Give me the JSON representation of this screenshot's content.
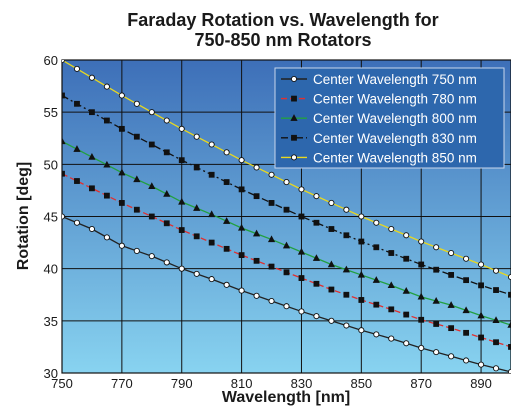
{
  "chart_data": {
    "type": "line",
    "title": "Faraday Rotation vs. Wavelength for",
    "subtitle": "750-850 nm Rotators",
    "xlabel": "Wavelength [nm]",
    "ylabel": "Rotation [deg]",
    "xlim": [
      750,
      900
    ],
    "ylim": [
      30,
      60
    ],
    "x_ticks": [
      750,
      770,
      790,
      810,
      830,
      850,
      870,
      890
    ],
    "y_ticks": [
      30,
      35,
      40,
      45,
      50,
      55,
      60
    ],
    "grid": true,
    "legend_position": "top-right",
    "colors": {
      "plot_top": "#3d6fb8",
      "plot_bottom": "#88d3f0",
      "grid": "#111111",
      "legend_bg": "#2d67ad",
      "marker_stroke": "#111111"
    },
    "series": [
      {
        "name": "Center Wavelength 750 nm",
        "line_color": "#222222",
        "dash": "solid",
        "marker": "circle",
        "marker_fill": "#ffffff",
        "x": [
          750,
          760,
          770,
          780,
          790,
          800,
          810,
          820,
          830,
          840,
          850,
          860,
          870,
          880,
          890,
          900
        ],
        "y": [
          45.0,
          43.8,
          42.2,
          41.2,
          40.0,
          39.0,
          37.9,
          36.9,
          35.9,
          35.0,
          34.1,
          33.3,
          32.4,
          31.6,
          30.8,
          30.1
        ]
      },
      {
        "name": "Center Wavelength 780 nm",
        "line_color": "#e03030",
        "dash": "dashed",
        "marker": "square",
        "marker_fill": "#111111",
        "x": [
          750,
          760,
          770,
          780,
          790,
          800,
          810,
          820,
          830,
          840,
          850,
          860,
          870,
          880,
          890,
          900
        ],
        "y": [
          49.1,
          47.7,
          46.3,
          45.0,
          43.7,
          42.5,
          41.3,
          40.2,
          39.1,
          38.0,
          37.0,
          36.1,
          35.1,
          34.3,
          33.4,
          32.5
        ]
      },
      {
        "name": "Center Wavelength 800 nm",
        "line_color": "#22a040",
        "dash": "solid",
        "marker": "triangle",
        "marker_fill": "#111111",
        "x": [
          750,
          760,
          770,
          780,
          790,
          800,
          810,
          820,
          830,
          840,
          850,
          860,
          870,
          880,
          890,
          900
        ],
        "y": [
          52.2,
          50.7,
          49.2,
          47.9,
          46.4,
          45.2,
          43.9,
          42.8,
          41.6,
          40.4,
          39.4,
          38.4,
          37.3,
          36.5,
          35.5,
          34.6
        ]
      },
      {
        "name": "Center Wavelength 830 nm",
        "line_color": "#111111",
        "dash": "dashdot",
        "marker": "square",
        "marker_fill": "#111111",
        "x": [
          750,
          760,
          770,
          780,
          790,
          800,
          810,
          820,
          830,
          840,
          850,
          860,
          870,
          880,
          890,
          900
        ],
        "y": [
          56.6,
          55.0,
          53.4,
          51.9,
          50.4,
          49.0,
          47.6,
          46.3,
          45.0,
          43.8,
          42.6,
          41.5,
          40.4,
          39.4,
          38.4,
          37.5
        ]
      },
      {
        "name": "Center Wavelength 850 nm",
        "line_color": "#e8d820",
        "dash": "solid",
        "marker": "circle",
        "marker_fill": "#ffffff",
        "x": [
          750,
          760,
          770,
          780,
          790,
          800,
          810,
          820,
          830,
          840,
          850,
          860,
          870,
          880,
          890,
          900
        ],
        "y": [
          60.0,
          58.3,
          56.6,
          55.0,
          53.4,
          51.9,
          50.4,
          49.0,
          47.6,
          46.3,
          45.0,
          43.8,
          42.6,
          41.5,
          40.4,
          39.2
        ]
      }
    ]
  }
}
